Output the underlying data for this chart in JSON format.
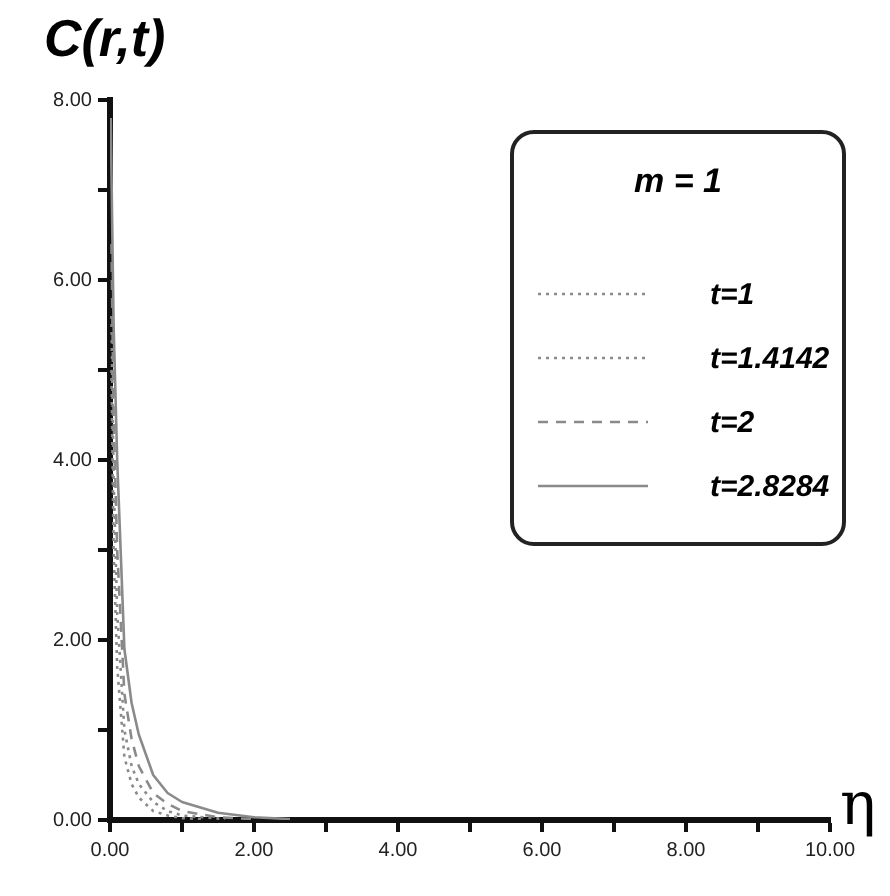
{
  "chart_data": {
    "type": "line",
    "xlabel": "η",
    "ylabel": "C(r,t)",
    "legend_title": "m = 1",
    "legend": "top right",
    "grid": false,
    "marker": "none",
    "xlim": [
      0,
      10
    ],
    "ylim": [
      0,
      8
    ],
    "xticks": [
      {
        "value": 0,
        "label": "0.00"
      },
      {
        "value": 1,
        "label": null
      },
      {
        "value": 2,
        "label": "2.00"
      },
      {
        "value": 3,
        "label": null
      },
      {
        "value": 4,
        "label": "4.00"
      },
      {
        "value": 5,
        "label": null
      },
      {
        "value": 6,
        "label": "6.00"
      },
      {
        "value": 7,
        "label": null
      },
      {
        "value": 8,
        "label": "8.00"
      },
      {
        "value": 9,
        "label": null
      },
      {
        "value": 10,
        "label": "10.00"
      }
    ],
    "yticks": [
      {
        "value": 0,
        "label": "0.00"
      },
      {
        "value": 1,
        "label": null
      },
      {
        "value": 2,
        "label": "2.00"
      },
      {
        "value": 3,
        "label": null
      },
      {
        "value": 4,
        "label": "4.00"
      },
      {
        "value": 5,
        "label": null
      },
      {
        "value": 6,
        "label": "6.00"
      },
      {
        "value": 7,
        "label": null
      },
      {
        "value": 8,
        "label": "8.00"
      }
    ],
    "series": [
      {
        "name": "t=1",
        "color": "#8a8a8a",
        "line_style": "dotted",
        "x": [
          0.02,
          0.05,
          0.1,
          0.2,
          0.3,
          0.4,
          0.6,
          0.8,
          1.0,
          1.3
        ],
        "values": [
          5.0,
          3.0,
          1.7,
          0.7,
          0.4,
          0.25,
          0.1,
          0.05,
          0.02,
          0.01
        ]
      },
      {
        "name": "t=1.4142",
        "color": "#8a8a8a",
        "line_style": "dotted",
        "x": [
          0.02,
          0.05,
          0.1,
          0.2,
          0.3,
          0.4,
          0.6,
          0.8,
          1.0,
          1.6
        ],
        "values": [
          5.6,
          3.8,
          2.3,
          1.0,
          0.6,
          0.4,
          0.2,
          0.1,
          0.05,
          0.01
        ]
      },
      {
        "name": "t=2",
        "color": "#8a8a8a",
        "line_style": "dashed",
        "x": [
          0.02,
          0.05,
          0.1,
          0.2,
          0.3,
          0.4,
          0.6,
          0.8,
          1.0,
          1.5,
          2.0
        ],
        "values": [
          6.4,
          4.5,
          3.0,
          1.4,
          0.9,
          0.6,
          0.3,
          0.18,
          0.1,
          0.03,
          0.01
        ]
      },
      {
        "name": "t=2.8284",
        "color": "#8a8a8a",
        "line_style": "solid",
        "x": [
          0.01,
          0.05,
          0.1,
          0.2,
          0.3,
          0.4,
          0.6,
          0.8,
          1.0,
          1.5,
          2.0,
          2.5
        ],
        "values": [
          7.8,
          5.5,
          4.0,
          1.9,
          1.3,
          0.95,
          0.5,
          0.3,
          0.2,
          0.08,
          0.03,
          0.01
        ]
      }
    ]
  }
}
